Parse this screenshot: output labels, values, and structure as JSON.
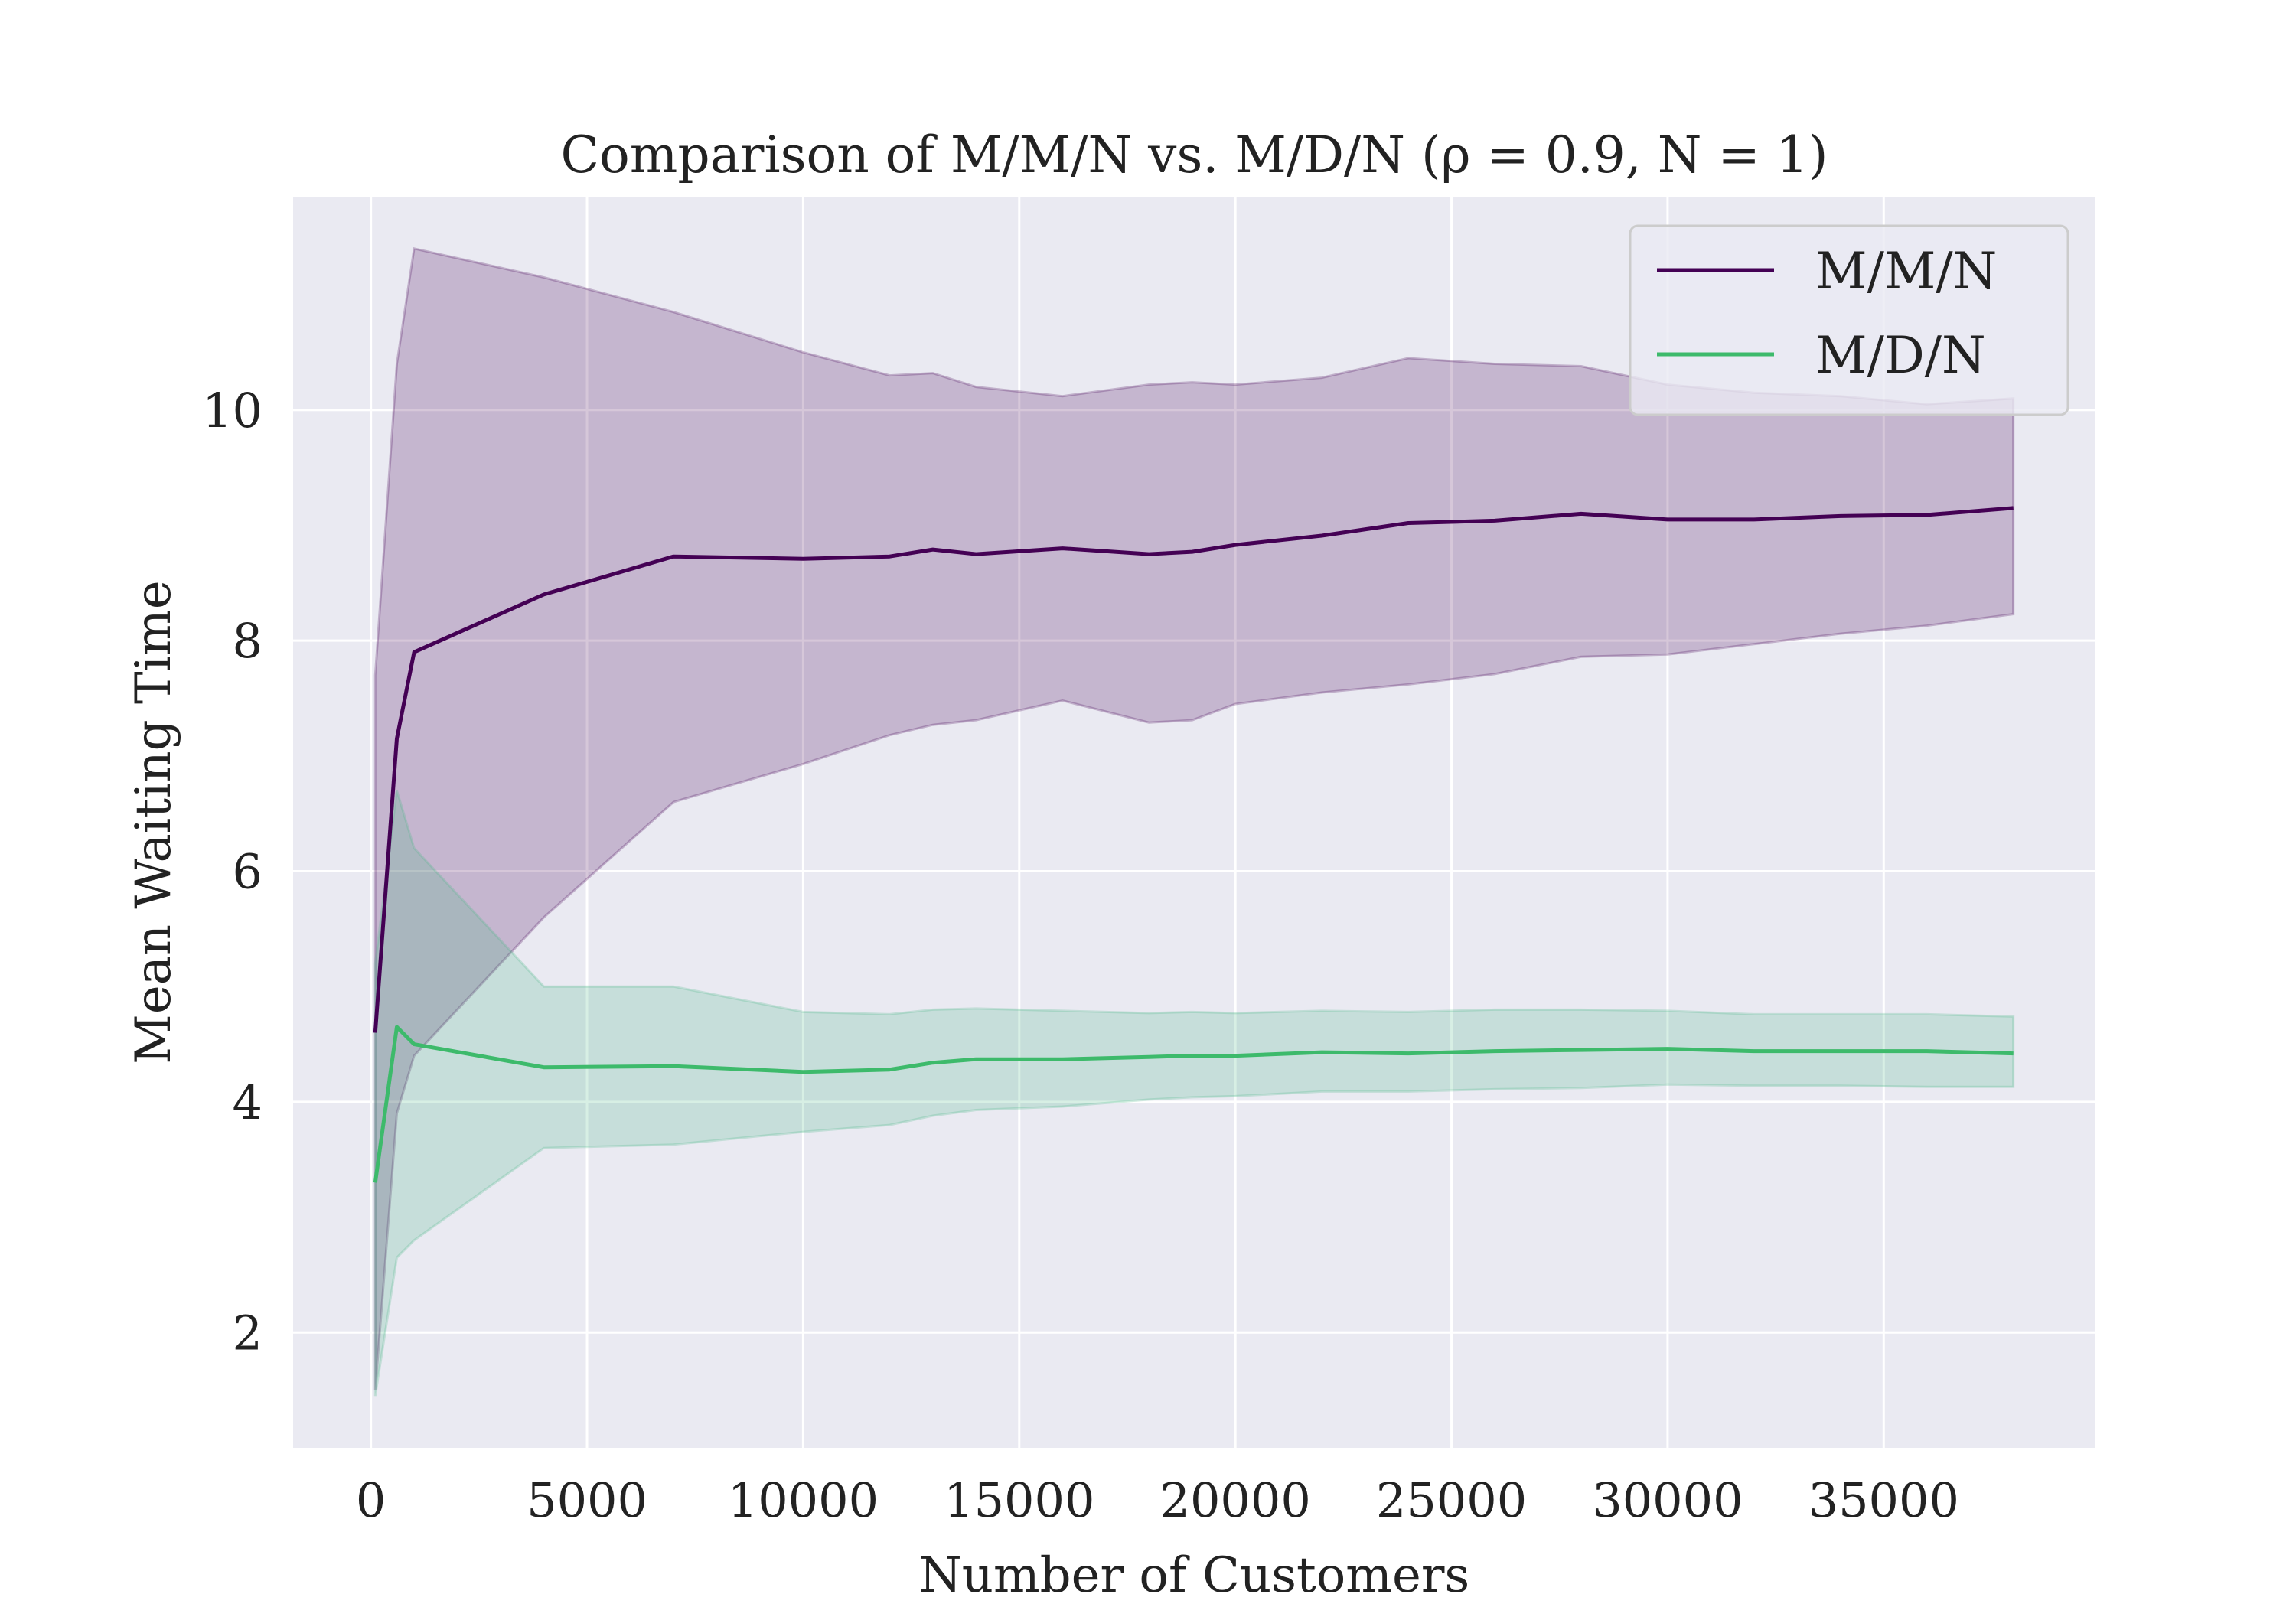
{
  "chart_data": {
    "type": "line",
    "title": "Comparison of M/M/N vs. M/D/N (ρ = 0.9, N = 1)",
    "xlabel": "Number of Customers",
    "ylabel": "Mean Waiting Time",
    "xlim": [
      -1800,
      39900
    ],
    "ylim": [
      1.0,
      11.85
    ],
    "x_ticks": [
      0,
      5000,
      10000,
      15000,
      20000,
      25000,
      30000,
      35000
    ],
    "x_tick_labels": [
      "0",
      "5000",
      "10000",
      "15000",
      "20000",
      "25000",
      "30000",
      "35000"
    ],
    "y_ticks": [
      2,
      4,
      6,
      8,
      10
    ],
    "y_tick_labels": [
      "2",
      "4",
      "6",
      "8",
      "10"
    ],
    "grid": true,
    "legend_position": "top-right",
    "x": [
      100,
      600,
      1000,
      4000,
      7000,
      10000,
      12000,
      13000,
      14000,
      16000,
      18000,
      19000,
      20000,
      22000,
      24000,
      26000,
      28000,
      30000,
      32000,
      34000,
      36000,
      38000
    ],
    "series": [
      {
        "name": "M/M/N",
        "color": "#440154",
        "fill_color": "#440154",
        "mean": [
          4.6,
          7.15,
          7.9,
          8.4,
          8.73,
          8.71,
          8.73,
          8.79,
          8.75,
          8.8,
          8.75,
          8.77,
          8.83,
          8.91,
          9.02,
          9.04,
          9.1,
          9.05,
          9.05,
          9.08,
          9.09,
          9.15
        ],
        "upper": [
          7.7,
          10.4,
          11.4,
          11.15,
          10.85,
          10.5,
          10.3,
          10.32,
          10.2,
          10.12,
          10.22,
          10.24,
          10.22,
          10.28,
          10.45,
          10.4,
          10.38,
          10.22,
          10.15,
          10.12,
          10.05,
          10.1
        ],
        "lower": [
          1.5,
          3.9,
          4.4,
          5.6,
          6.6,
          6.93,
          7.18,
          7.27,
          7.31,
          7.48,
          7.29,
          7.31,
          7.45,
          7.55,
          7.62,
          7.71,
          7.86,
          7.88,
          7.97,
          8.06,
          8.13,
          8.23
        ]
      },
      {
        "name": "M/D/N",
        "color": "#3dba6b",
        "fill_color": "#4ab886",
        "mean": [
          3.3,
          4.65,
          4.5,
          4.3,
          4.31,
          4.26,
          4.28,
          4.34,
          4.37,
          4.37,
          4.39,
          4.4,
          4.4,
          4.43,
          4.42,
          4.44,
          4.45,
          4.46,
          4.44,
          4.44,
          4.44,
          4.42
        ],
        "upper": [
          5.2,
          6.7,
          6.2,
          5.0,
          5.0,
          4.78,
          4.76,
          4.8,
          4.81,
          4.79,
          4.77,
          4.78,
          4.77,
          4.79,
          4.78,
          4.8,
          4.8,
          4.79,
          4.76,
          4.76,
          4.76,
          4.74
        ],
        "lower": [
          1.45,
          2.65,
          2.8,
          3.6,
          3.63,
          3.74,
          3.8,
          3.88,
          3.93,
          3.96,
          4.02,
          4.04,
          4.05,
          4.09,
          4.09,
          4.11,
          4.12,
          4.15,
          4.14,
          4.14,
          4.13,
          4.13
        ]
      }
    ]
  }
}
